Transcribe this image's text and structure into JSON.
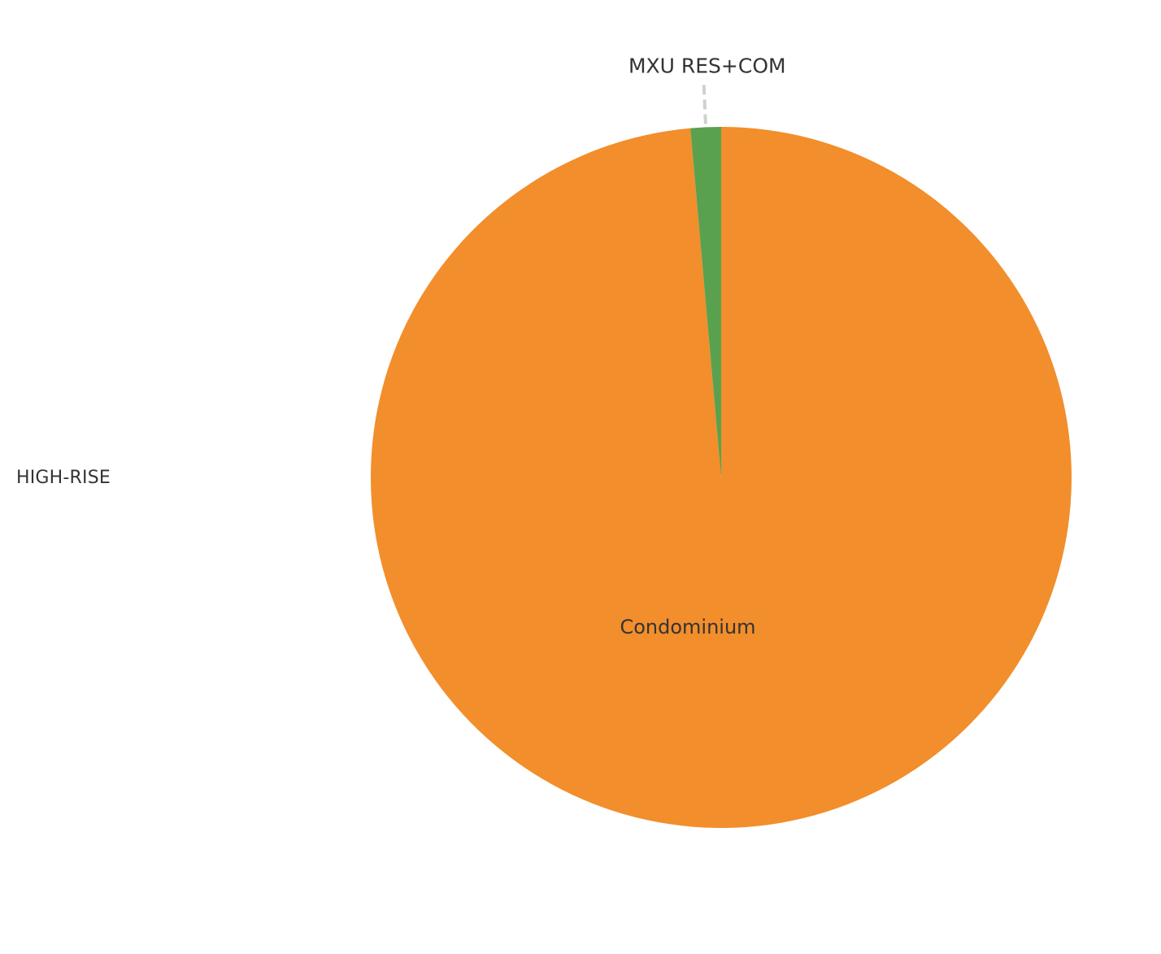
{
  "chart_data": {
    "type": "pie",
    "row_label": "HIGH-RISE",
    "slices": [
      {
        "label": "Condominium",
        "value": 98.6,
        "color": "#F28E2B"
      },
      {
        "label": "MXU RES+COM",
        "value": 1.4,
        "color": "#59A14F"
      }
    ],
    "leader_line_color": "#D0D0D0"
  }
}
